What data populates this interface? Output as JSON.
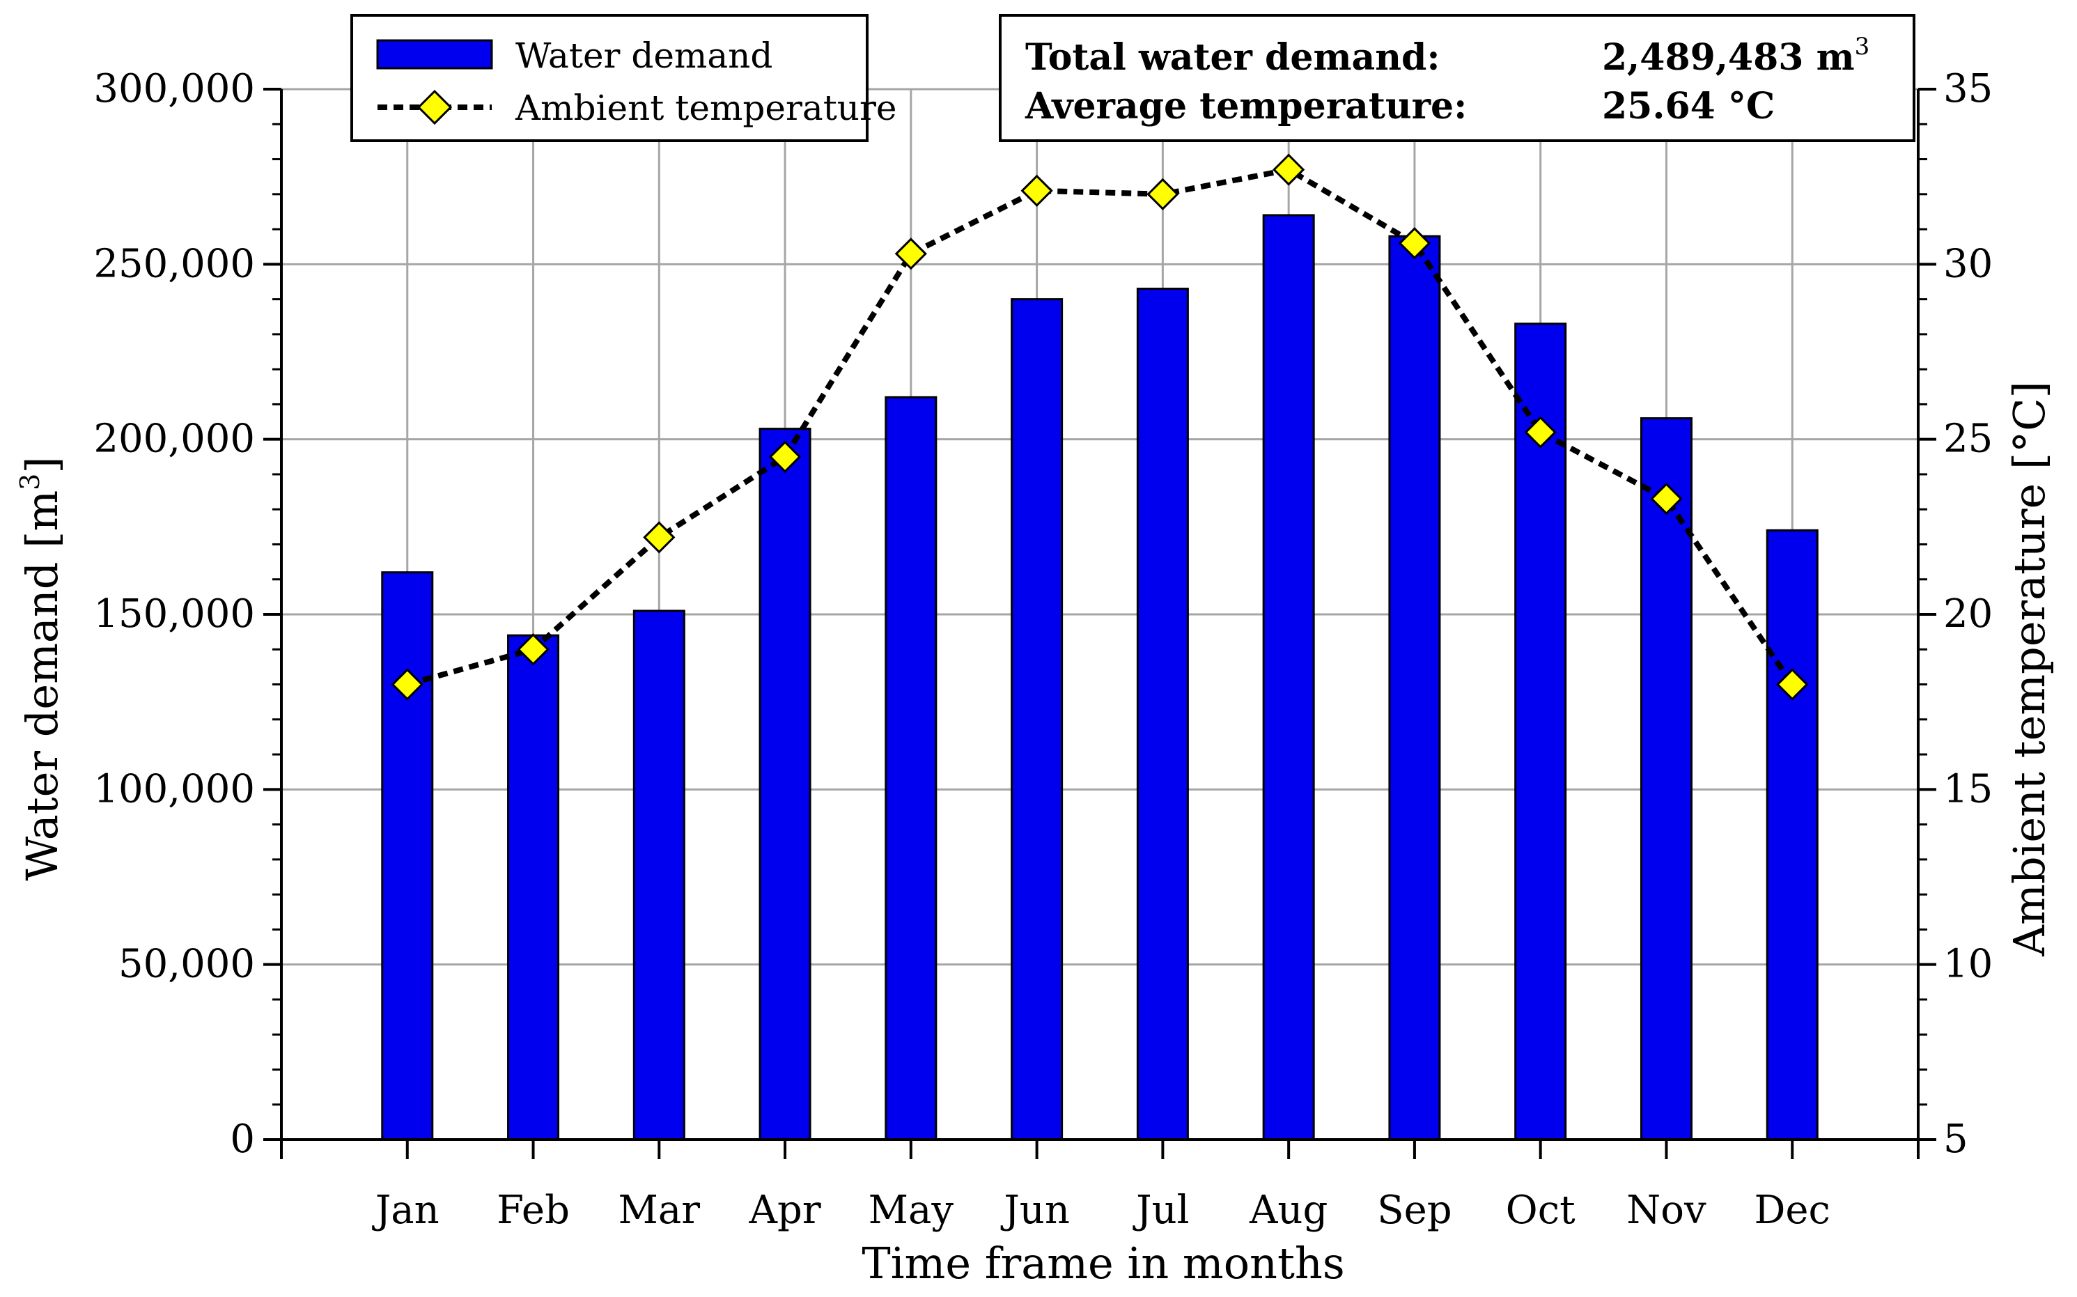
{
  "chart_data": {
    "type": "bar+line",
    "title": "",
    "categories": [
      "Jan",
      "Feb",
      "Mar",
      "Apr",
      "May",
      "Jun",
      "Jul",
      "Aug",
      "Sep",
      "Oct",
      "Nov",
      "Dec"
    ],
    "series": [
      {
        "name": "Water demand",
        "kind": "bar",
        "axis": "left",
        "color": "#0000EE",
        "values": [
          162000,
          144000,
          151000,
          203000,
          212000,
          240000,
          243000,
          264000,
          258000,
          233000,
          206000,
          174000
        ]
      },
      {
        "name": "Ambient temperature",
        "kind": "line",
        "axis": "right",
        "color": "#FFFF00",
        "line_color": "#000000",
        "values": [
          18.0,
          19.0,
          22.2,
          24.5,
          30.3,
          32.1,
          32.0,
          32.7,
          30.6,
          25.2,
          23.3,
          18.0
        ]
      }
    ],
    "xlabel": "Time frame in months",
    "ylabel": "Water demand [m",
    "ylabel_sup": "3",
    "ylabel_end": "]",
    "y2label": "Ambient temperature [°C]",
    "ylim": [
      0,
      300000
    ],
    "y2lim": [
      5,
      35
    ],
    "yticks": [
      0,
      50000,
      100000,
      150000,
      200000,
      250000,
      300000
    ],
    "ytick_labels": [
      "0",
      "50,000",
      "100,000",
      "150,000",
      "200,000",
      "250,000",
      "300,000"
    ],
    "y2ticks": [
      5,
      10,
      15,
      20,
      25,
      30,
      35
    ],
    "y2tick_labels": [
      "5",
      "10",
      "15",
      "20",
      "25",
      "30",
      "35"
    ],
    "grid": true,
    "legend": {
      "placement": "top-left",
      "entries": [
        "Water demand",
        "Ambient temperature"
      ]
    },
    "summary": {
      "total_label": "Total water demand:",
      "total_value": "2,489,483 m",
      "total_unit_sup": "3",
      "avg_label": "Average temperature:",
      "avg_value": "25.64 °C"
    }
  }
}
